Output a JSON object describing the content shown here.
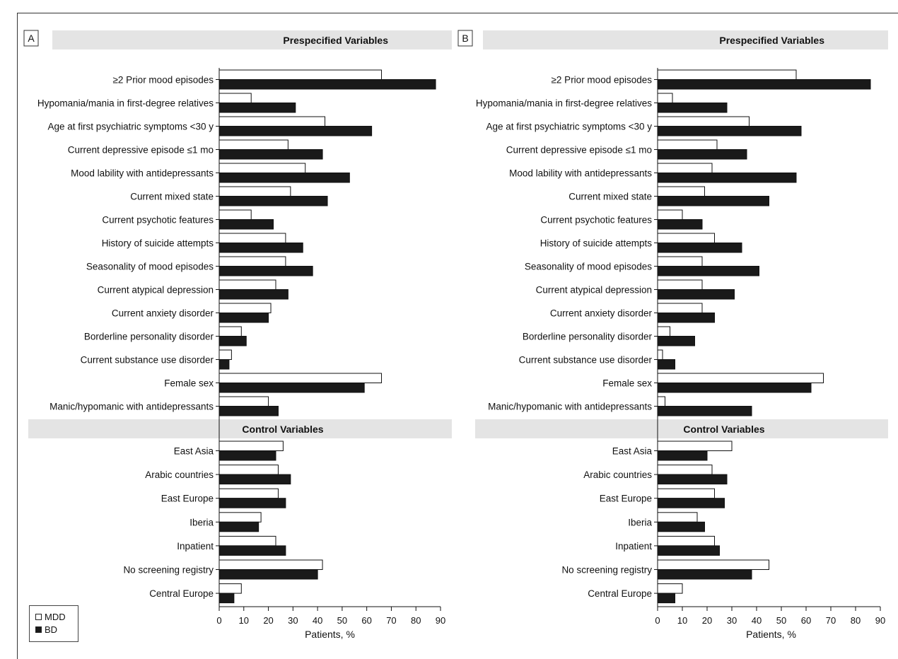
{
  "legend": {
    "series": [
      {
        "name": "MDD",
        "color": "#ffffff"
      },
      {
        "name": "BD",
        "color": "#1a1a1a"
      }
    ]
  },
  "section_titles": {
    "prespecified": "Prespecified Variables",
    "control": "Control Variables"
  },
  "chart_data": [
    {
      "type": "bar",
      "orientation": "horizontal",
      "panel_label": "A",
      "xlabel": "Patients, %",
      "xlim": [
        0,
        90
      ],
      "xticks": [
        0,
        10,
        20,
        30,
        40,
        50,
        60,
        70,
        80,
        90
      ],
      "categories": [
        "≥2 Prior mood episodes",
        "Hypomania/mania in first-degree relatives",
        "Age at first psychiatric symptoms <30 y",
        "Current depressive episode ≤1 mo",
        "Mood lability with antidepressants",
        "Current mixed state",
        "Current psychotic features",
        "History of suicide attempts",
        "Seasonality of mood episodes",
        "Current atypical depression",
        "Current anxiety disorder",
        "Borderline personality disorder",
        "Current substance use disorder",
        "Female sex",
        "Manic/hypomanic with antidepressants",
        "East Asia",
        "Arabic countries",
        "East Europe",
        "Iberia",
        "Inpatient",
        "No screening registry",
        "Central Europe"
      ],
      "groups": [
        {
          "title": "Prespecified Variables",
          "count": 15
        },
        {
          "title": "Control Variables",
          "count": 7
        }
      ],
      "series": [
        {
          "name": "MDD",
          "values": [
            66,
            13,
            43,
            28,
            35,
            29,
            13,
            27,
            27,
            23,
            21,
            9,
            5,
            66,
            20,
            26,
            24,
            24,
            17,
            23,
            42,
            9
          ]
        },
        {
          "name": "BD",
          "values": [
            88,
            31,
            62,
            42,
            53,
            44,
            22,
            34,
            38,
            28,
            20,
            11,
            4,
            59,
            24,
            23,
            29,
            27,
            16,
            27,
            40,
            6
          ]
        }
      ]
    },
    {
      "type": "bar",
      "orientation": "horizontal",
      "panel_label": "B",
      "xlabel": "Patients, %",
      "xlim": [
        0,
        90
      ],
      "xticks": [
        0,
        10,
        20,
        30,
        40,
        50,
        60,
        70,
        80,
        90
      ],
      "categories": [
        "≥2 Prior mood episodes",
        "Hypomania/mania in first-degree relatives",
        "Age at first psychiatric symptoms <30 y",
        "Current depressive episode ≤1 mo",
        "Mood lability with antidepressants",
        "Current mixed state",
        "Current psychotic features",
        "History of suicide attempts",
        "Seasonality of mood episodes",
        "Current atypical depression",
        "Current anxiety disorder",
        "Borderline personality disorder",
        "Current substance use disorder",
        "Female sex",
        "Manic/hypomanic with antidepressants",
        "East Asia",
        "Arabic countries",
        "East Europe",
        "Iberia",
        "Inpatient",
        "No screening registry",
        "Central Europe"
      ],
      "groups": [
        {
          "title": "Prespecified Variables",
          "count": 15
        },
        {
          "title": "Control Variables",
          "count": 7
        }
      ],
      "series": [
        {
          "name": "MDD",
          "values": [
            56,
            6,
            37,
            24,
            22,
            19,
            10,
            23,
            18,
            18,
            18,
            5,
            2,
            67,
            3,
            30,
            22,
            23,
            16,
            23,
            45,
            10
          ]
        },
        {
          "name": "BD",
          "values": [
            86,
            28,
            58,
            36,
            56,
            45,
            18,
            34,
            41,
            31,
            23,
            15,
            7,
            62,
            38,
            20,
            28,
            27,
            19,
            25,
            38,
            7
          ]
        }
      ]
    }
  ]
}
